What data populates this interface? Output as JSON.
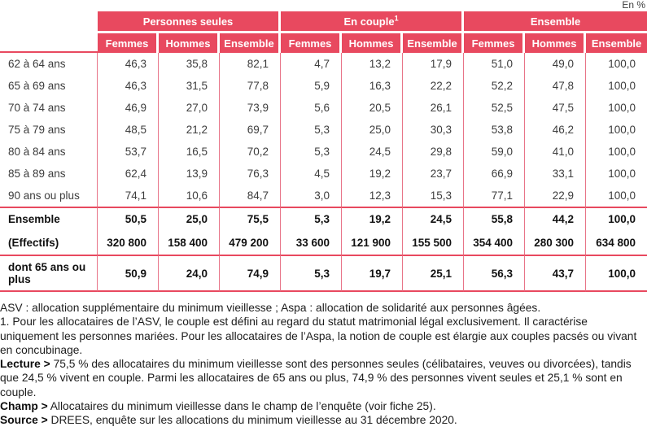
{
  "unit_label": "En %",
  "table": {
    "col_groups": [
      {
        "label": "Personnes seules",
        "sup": ""
      },
      {
        "label": "En couple",
        "sup": "1"
      },
      {
        "label": "Ensemble",
        "sup": ""
      }
    ],
    "sub_headers": [
      "Femmes",
      "Hommes",
      "Ensemble",
      "Femmes",
      "Hommes",
      "Ensemble",
      "Femmes",
      "Hommes",
      "Ensemble"
    ],
    "rows": [
      {
        "label": "62 à 64 ans",
        "values": [
          "46,3",
          "35,8",
          "82,1",
          "4,7",
          "13,2",
          "17,9",
          "51,0",
          "49,0",
          "100,0"
        ]
      },
      {
        "label": "65 à 69 ans",
        "values": [
          "46,3",
          "31,5",
          "77,8",
          "5,9",
          "16,3",
          "22,2",
          "52,2",
          "47,8",
          "100,0"
        ]
      },
      {
        "label": "70 à 74 ans",
        "values": [
          "46,9",
          "27,0",
          "73,9",
          "5,6",
          "20,5",
          "26,1",
          "52,5",
          "47,5",
          "100,0"
        ]
      },
      {
        "label": "75 à 79 ans",
        "values": [
          "48,5",
          "21,2",
          "69,7",
          "5,3",
          "25,0",
          "30,3",
          "53,8",
          "46,2",
          "100,0"
        ]
      },
      {
        "label": "80 à 84 ans",
        "values": [
          "53,7",
          "16,5",
          "70,2",
          "5,3",
          "24,5",
          "29,8",
          "59,0",
          "41,0",
          "100,0"
        ]
      },
      {
        "label": "85 à 89 ans",
        "values": [
          "62,4",
          "13,9",
          "76,3",
          "4,5",
          "19,2",
          "23,7",
          "66,9",
          "33,1",
          "100,0"
        ]
      },
      {
        "label": "90 ans ou plus",
        "values": [
          "74,1",
          "10,6",
          "84,7",
          "3,0",
          "12,3",
          "15,3",
          "77,1",
          "22,9",
          "100,0"
        ]
      },
      {
        "label": "Ensemble",
        "values": [
          "50,5",
          "25,0",
          "75,5",
          "5,3",
          "19,2",
          "24,5",
          "55,8",
          "44,2",
          "100,0"
        ]
      },
      {
        "label": "(Effectifs)",
        "values": [
          "320 800",
          "158 400",
          "479 200",
          "33 600",
          "121 900",
          "155 500",
          "354 400",
          "280 300",
          "634 800"
        ]
      },
      {
        "label": "dont 65 ans ou plus",
        "values": [
          "50,9",
          "24,0",
          "74,9",
          "5,3",
          "19,7",
          "25,1",
          "56,3",
          "43,7",
          "100,0"
        ]
      }
    ]
  },
  "notes": {
    "asv": "ASV : allocation supplémentaire du minimum vieillesse ; Aspa : allocation de solidarité aux personnes âgées.",
    "footnote1": "1. Pour les allocataires de l’ASV, le couple est défini au regard du statut matrimonial légal exclusivement. Il caractérise uniquement les personnes mariées. Pour les allocataires de l’Aspa, la notion de couple est élargie aux couples pacsés ou vivant en concubinage.",
    "lecture_label": "Lecture >",
    "lecture_text": " 75,5 % des allocataires du minimum vieillesse sont des personnes seules (célibataires, veuves ou divorcées), tandis que 24,5 % vivent en couple. Parmi les allocataires de 65 ans ou plus, 74,9 % des personnes vivent seules et 25,1 % sont en couple.",
    "champ_label": "Champ >",
    "champ_text": " Allocataires du minimum vieillesse dans le champ de l’enquête (voir fiche 25).",
    "source_label": "Source >",
    "source_text": " DREES, enquête sur les allocations du minimum vieillesse au 31 décembre 2020."
  },
  "colors": {
    "accent_red": "#e8495f",
    "grid_pink": "#e87488"
  }
}
